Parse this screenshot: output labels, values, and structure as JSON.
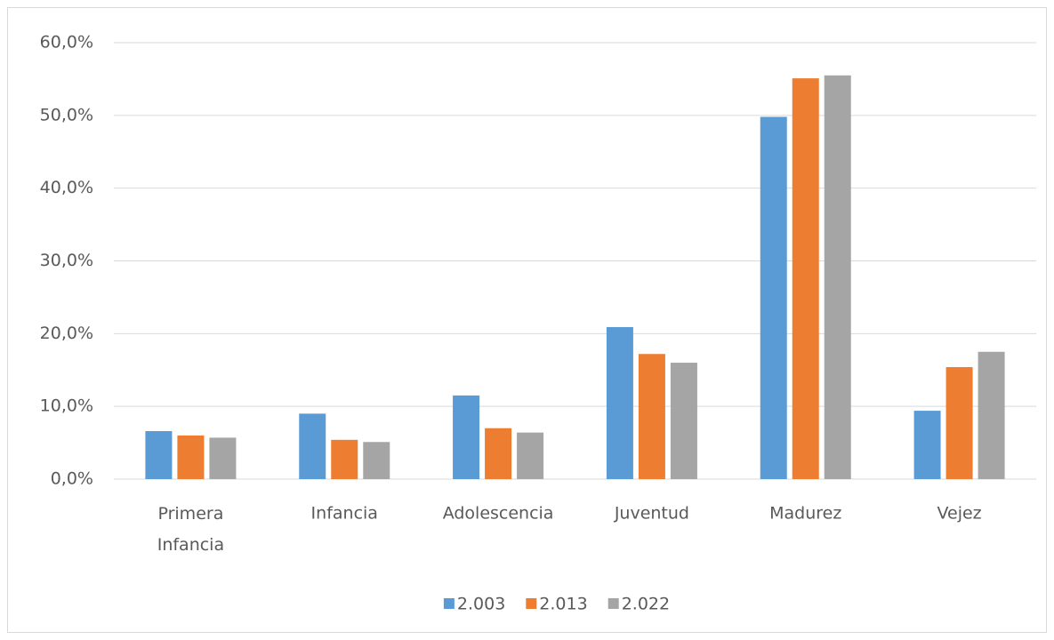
{
  "chart_data": {
    "type": "bar",
    "categories": [
      "Primera Infancia",
      "Infancia",
      "Adolescencia",
      "Juventud",
      "Madurez",
      "Vejez"
    ],
    "series": [
      {
        "name": "2.003",
        "color": "#5b9bd5",
        "values": [
          6.6,
          9.0,
          11.5,
          20.9,
          49.8,
          9.4
        ]
      },
      {
        "name": "2.013",
        "color": "#ed7d31",
        "values": [
          6.0,
          5.4,
          7.0,
          17.2,
          55.1,
          15.4
        ]
      },
      {
        "name": "2.022",
        "color": "#a5a5a5",
        "values": [
          5.7,
          5.1,
          6.4,
          16.0,
          55.5,
          17.5
        ]
      }
    ],
    "ylim": [
      0,
      60
    ],
    "yticks": [
      {
        "value": 0,
        "label": "0,0%"
      },
      {
        "value": 10,
        "label": "10,0%"
      },
      {
        "value": 20,
        "label": "20,0%"
      },
      {
        "value": 30,
        "label": "30,0%"
      },
      {
        "value": 40,
        "label": "40,0%"
      },
      {
        "value": 50,
        "label": "50,0%"
      },
      {
        "value": 60,
        "label": "60,0%"
      }
    ],
    "grid": true,
    "legend": "bottom"
  }
}
